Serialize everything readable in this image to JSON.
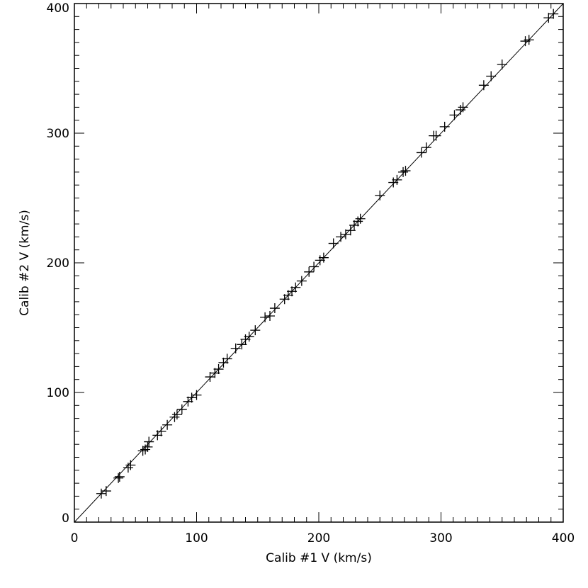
{
  "chart_data": {
    "type": "scatter",
    "xlabel": "Calib #1 V (km/s)",
    "ylabel": "Calib #2 V (km/s)",
    "xlim": [
      0,
      400
    ],
    "ylim": [
      0,
      400
    ],
    "xticks": [
      0,
      100,
      200,
      300,
      400
    ],
    "yticks": [
      0,
      100,
      200,
      300,
      400
    ],
    "grid": false,
    "marker": "plus",
    "reference_line": {
      "x": [
        0,
        400
      ],
      "y": [
        0,
        400
      ]
    },
    "series": [
      {
        "points": [
          [
            22,
            22
          ],
          [
            26,
            24
          ],
          [
            36,
            34
          ],
          [
            37,
            35
          ],
          [
            44,
            42
          ],
          [
            46,
            44
          ],
          [
            56,
            55
          ],
          [
            58,
            56
          ],
          [
            60,
            58
          ],
          [
            61,
            62
          ],
          [
            68,
            67
          ],
          [
            71,
            70
          ],
          [
            76,
            75
          ],
          [
            82,
            81
          ],
          [
            84,
            83
          ],
          [
            88,
            87
          ],
          [
            93,
            93
          ],
          [
            96,
            96
          ],
          [
            100,
            98
          ],
          [
            111,
            112
          ],
          [
            115,
            115
          ],
          [
            118,
            118
          ],
          [
            122,
            123
          ],
          [
            125,
            126
          ],
          [
            132,
            134
          ],
          [
            137,
            137
          ],
          [
            140,
            141
          ],
          [
            143,
            143
          ],
          [
            148,
            148
          ],
          [
            156,
            158
          ],
          [
            160,
            159
          ],
          [
            164,
            165
          ],
          [
            172,
            172
          ],
          [
            175,
            175
          ],
          [
            178,
            178
          ],
          [
            181,
            181
          ],
          [
            186,
            186
          ],
          [
            192,
            193
          ],
          [
            196,
            197
          ],
          [
            201,
            202
          ],
          [
            204,
            204
          ],
          [
            212,
            215
          ],
          [
            218,
            220
          ],
          [
            222,
            222
          ],
          [
            226,
            225
          ],
          [
            229,
            229
          ],
          [
            232,
            232
          ],
          [
            234,
            234
          ],
          [
            250,
            252
          ],
          [
            261,
            262
          ],
          [
            264,
            264
          ],
          [
            269,
            270
          ],
          [
            271,
            271
          ],
          [
            284,
            285
          ],
          [
            288,
            289
          ],
          [
            294,
            298
          ],
          [
            296,
            298
          ],
          [
            303,
            305
          ],
          [
            311,
            314
          ],
          [
            316,
            318
          ],
          [
            318,
            320
          ],
          [
            335,
            337
          ],
          [
            341,
            344
          ],
          [
            350,
            353
          ],
          [
            369,
            371
          ],
          [
            372,
            372
          ],
          [
            388,
            389
          ],
          [
            392,
            392
          ]
        ]
      }
    ]
  }
}
